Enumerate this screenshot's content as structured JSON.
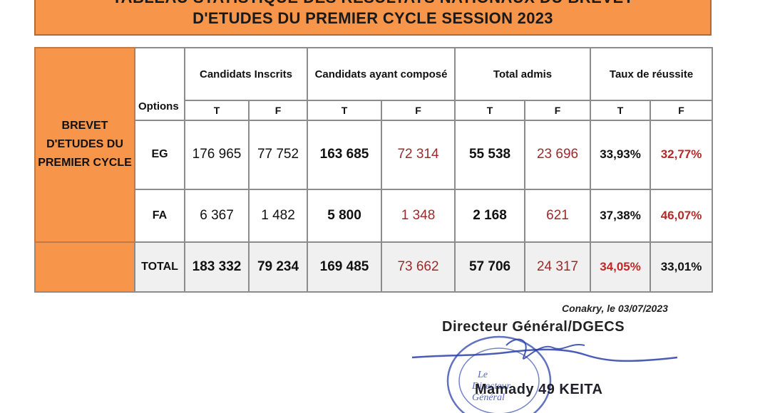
{
  "title": {
    "line1": "TABLEAU STATISTIQUE DES RÉSULTATS NATIONAUX DU BREVET",
    "line2": "D'ETUDES DU PREMIER CYCLE SESSION 2023"
  },
  "table": {
    "exam_label": [
      "BREVET",
      "D'ETUDES DU",
      "PREMIER CYCLE"
    ],
    "options_header": "Options",
    "group_headers": [
      "Candidats Inscrits",
      "Candidats ayant composé",
      "Total admis",
      "Taux de réussite"
    ],
    "sub_headers": [
      "T",
      "F",
      "T",
      "F",
      "T",
      "F",
      "T",
      "F"
    ],
    "rows": [
      {
        "label": "EG",
        "inscrits_t": "176 965",
        "inscrits_f": "77 752",
        "composes_t": "163 685",
        "composes_f": "72 314",
        "admis_t": "55 538",
        "admis_f": "23 696",
        "taux_t": "33,93%",
        "taux_f": "32,77%"
      },
      {
        "label": "FA",
        "inscrits_t": "6 367",
        "inscrits_f": "1 482",
        "composes_t": "5 800",
        "composes_f": "1 348",
        "admis_t": "2 168",
        "admis_f": "621",
        "taux_t": "37,38%",
        "taux_f": "46,07%"
      },
      {
        "label": "TOTAL",
        "inscrits_t": "183 332",
        "inscrits_f": "79 234",
        "composes_t": "169 485",
        "composes_f": "73 662",
        "admis_t": "57 706",
        "admis_f": "24 317",
        "taux_t": "34,05%",
        "taux_f": "33,01%"
      }
    ]
  },
  "signature": {
    "place_date": "Conakry, le 03/07/2023",
    "title": "Directeur Général/DGECS",
    "stamp_text_center": [
      "Le",
      "Directeur",
      "Général"
    ],
    "name": "Mamady 49 KEITA"
  },
  "colors": {
    "header_orange": "#f7954a",
    "female_red": "#9b2b2b",
    "highlight_red": "#c0262a",
    "stamp_blue": "#3b4fb0"
  }
}
